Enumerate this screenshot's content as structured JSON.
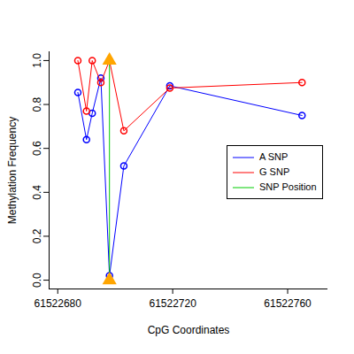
{
  "chart_data": {
    "type": "line",
    "x_label": "CpG Coordinates",
    "y_label": "Methylation Frequency",
    "xlim": [
      61522677,
      61522774
    ],
    "ylim": [
      -0.04,
      1.04
    ],
    "xticks": [
      61522680,
      61522720,
      61522760
    ],
    "yticks": [
      {
        "value": 0,
        "label": "0.0"
      },
      0.2,
      0.4,
      0.6,
      0.8,
      {
        "value": 1,
        "label": "1.0"
      }
    ],
    "legend": "right",
    "series": [
      {
        "name": "A SNP",
        "color": "#0000ff",
        "marker": "circle",
        "x": [
          61522687,
          61522690,
          61522692,
          61522695,
          61522698,
          61522703,
          61522719,
          61522765
        ],
        "values": [
          0.855,
          0.64,
          0.76,
          0.92,
          0.02,
          0.52,
          0.885,
          0.75
        ]
      },
      {
        "name": "G SNP",
        "color": "#ff0000",
        "marker": "circle",
        "x": [
          61522687,
          61522690,
          61522692,
          61522695,
          61522698,
          61522703,
          61522719,
          61522765
        ],
        "values": [
          1.0,
          0.77,
          1.0,
          0.9,
          1.0,
          0.68,
          0.875,
          0.9
        ]
      },
      {
        "name": "SNP Position",
        "color": "#00cc00",
        "marker": "triangle",
        "x": [
          61522698,
          61522698
        ],
        "values": [
          0,
          1
        ]
      }
    ]
  }
}
